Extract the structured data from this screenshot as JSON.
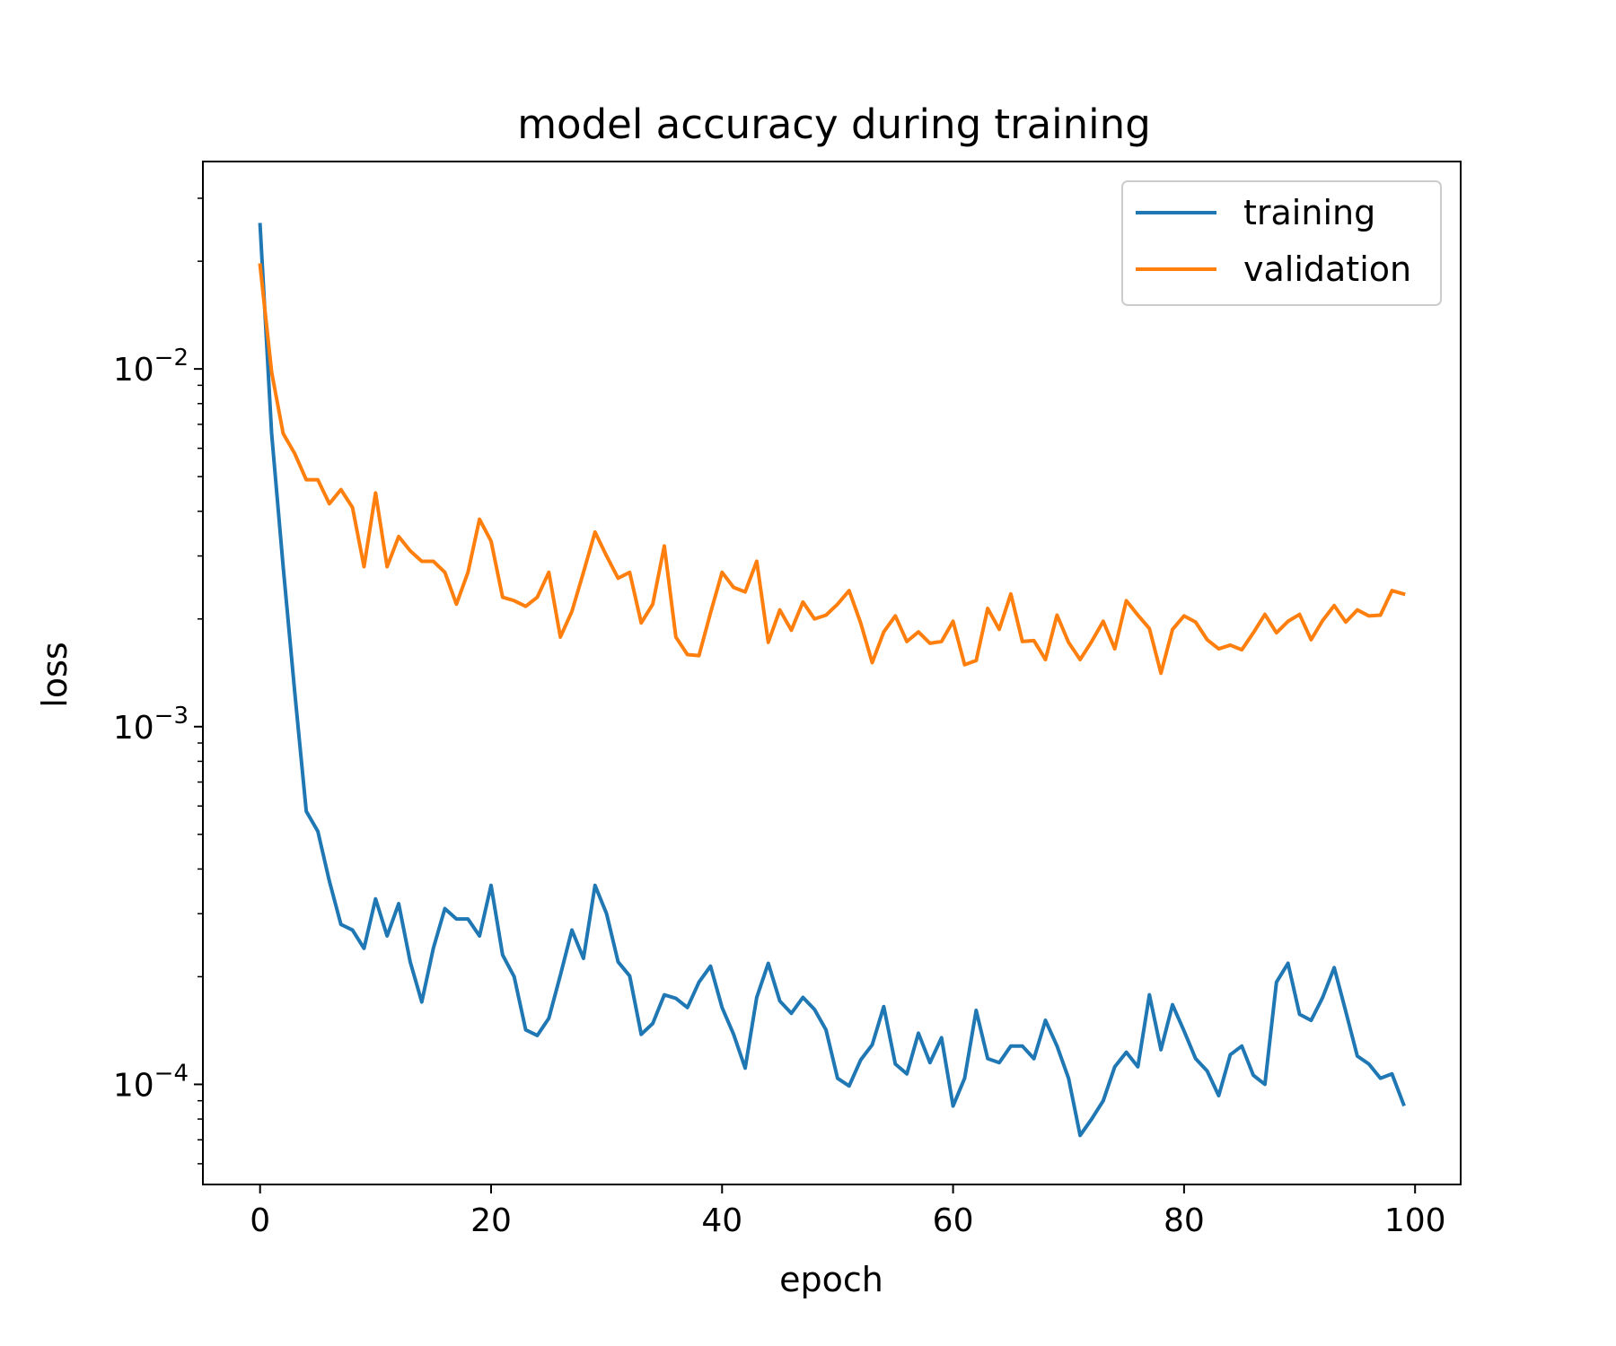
{
  "chart_data": {
    "type": "line",
    "title": "model accuracy during training",
    "xlabel": "epoch",
    "ylabel": "loss",
    "yscale": "log",
    "xlim": [
      -4.95,
      103.95
    ],
    "ylim": [
      5.25e-05,
      0.038
    ],
    "x_ticks": [
      0,
      20,
      40,
      60,
      80,
      100
    ],
    "y_ticks": [
      {
        "value": 0.0001,
        "base": "10",
        "exp": "−4"
      },
      {
        "value": 0.001,
        "base": "10",
        "exp": "−3"
      },
      {
        "value": 0.01,
        "base": "10",
        "exp": "−2"
      }
    ],
    "grid": false,
    "legend_position": "upper-right",
    "series": [
      {
        "name": "training",
        "color": "#1f77b4",
        "values": [
          0.0253,
          0.0066,
          0.0028,
          0.00125,
          0.00058,
          0.00051,
          0.00037,
          0.00028,
          0.00027,
          0.00024,
          0.00033,
          0.00026,
          0.00032,
          0.00022,
          0.00017,
          0.00024,
          0.00031,
          0.00029,
          0.00029,
          0.00026,
          0.00036,
          0.00023,
          0.0002,
          0.000142,
          0.000137,
          0.000153,
          0.000202,
          0.00027,
          0.000225,
          0.00036,
          0.0003,
          0.00022,
          0.000201,
          0.000138,
          0.000148,
          0.000178,
          0.000174,
          0.000164,
          0.000193,
          0.000214,
          0.000164,
          0.000138,
          0.000111,
          0.000175,
          0.000218,
          0.000171,
          0.000158,
          0.000175,
          0.000162,
          0.000142,
          0.000104,
          9.9e-05,
          0.000117,
          0.000129,
          0.000165,
          0.000114,
          0.000107,
          0.000139,
          0.000115,
          0.000135,
          8.7e-05,
          0.000104,
          0.000161,
          0.000118,
          0.000115,
          0.000128,
          0.000128,
          0.000118,
          0.000151,
          0.000128,
          0.000104,
          7.2e-05,
          8e-05,
          9e-05,
          0.000112,
          0.000123,
          0.000112,
          0.000178,
          0.000125,
          0.000167,
          0.000141,
          0.000118,
          0.000109,
          9.3e-05,
          0.000121,
          0.000128,
          0.000106,
          0.0001,
          0.000193,
          0.000218,
          0.000157,
          0.000151,
          0.000175,
          0.000212,
          0.00016,
          0.00012,
          0.000114,
          0.000104,
          0.000107,
          8.8e-05
        ]
      },
      {
        "name": "validation",
        "color": "#ff7f0e",
        "values": [
          0.0195,
          0.0098,
          0.0066,
          0.0058,
          0.0049,
          0.0049,
          0.0042,
          0.0046,
          0.0041,
          0.0028,
          0.0045,
          0.0028,
          0.0034,
          0.0031,
          0.0029,
          0.0029,
          0.0027,
          0.0022,
          0.0027,
          0.0038,
          0.0033,
          0.0023,
          0.00225,
          0.00217,
          0.0023,
          0.0027,
          0.00178,
          0.0021,
          0.0027,
          0.0035,
          0.003,
          0.0026,
          0.0027,
          0.00195,
          0.0022,
          0.0032,
          0.00178,
          0.00159,
          0.00158,
          0.00208,
          0.0027,
          0.00245,
          0.00238,
          0.0029,
          0.00172,
          0.00212,
          0.00186,
          0.00223,
          0.002,
          0.00205,
          0.0022,
          0.0024,
          0.00195,
          0.00151,
          0.00184,
          0.00204,
          0.00173,
          0.00184,
          0.00171,
          0.00173,
          0.00197,
          0.00149,
          0.00153,
          0.00214,
          0.00187,
          0.00235,
          0.00173,
          0.00174,
          0.00154,
          0.00205,
          0.00172,
          0.00154,
          0.00173,
          0.00197,
          0.00165,
          0.00225,
          0.00205,
          0.00188,
          0.00141,
          0.00187,
          0.00204,
          0.00196,
          0.00175,
          0.00165,
          0.00169,
          0.00164,
          0.00183,
          0.00206,
          0.00183,
          0.00197,
          0.00206,
          0.00175,
          0.00198,
          0.00218,
          0.00196,
          0.00212,
          0.00204,
          0.00205,
          0.0024,
          0.00235
        ]
      }
    ]
  }
}
